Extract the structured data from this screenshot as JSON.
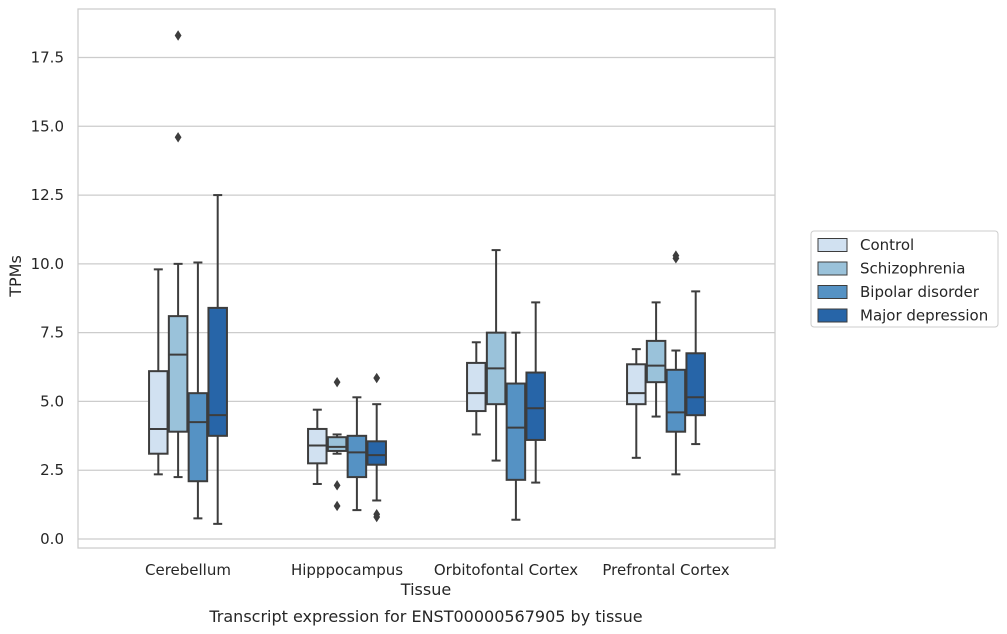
{
  "caption": "Transcript expression for ENST00000567905 by tissue",
  "chart_data": {
    "type": "box",
    "xlabel": "Tissue",
    "ylabel": "TPMs",
    "ylim": [
      -0.3,
      19.2
    ],
    "yticks": [
      "0.0",
      "2.5",
      "5.0",
      "7.5",
      "10.0",
      "12.5",
      "15.0",
      "17.5"
    ],
    "ytick_values": [
      0,
      2.5,
      5,
      7.5,
      10,
      12.5,
      15,
      17.5
    ],
    "grid": "horizontal",
    "legend_position": "right",
    "categories": [
      "Cerebellum",
      "Hipppocampus",
      "Orbitofontal Cortex",
      "Prefrontal Cortex"
    ],
    "series": [
      {
        "name": "Control",
        "color": "#d1e1f1",
        "boxes": [
          {
            "whislo": 2.35,
            "q1": 3.1,
            "med": 4.0,
            "q3": 6.1,
            "whishi": 9.8,
            "fliers": []
          },
          {
            "whislo": 2.0,
            "q1": 2.75,
            "med": 3.4,
            "q3": 4.0,
            "whishi": 4.7,
            "fliers": []
          },
          {
            "whislo": 3.8,
            "q1": 4.65,
            "med": 5.3,
            "q3": 6.4,
            "whishi": 7.15,
            "fliers": []
          },
          {
            "whislo": 2.95,
            "q1": 4.9,
            "med": 5.3,
            "q3": 6.35,
            "whishi": 6.9,
            "fliers": []
          }
        ]
      },
      {
        "name": "Schizophrenia",
        "color": "#9ac2da",
        "boxes": [
          {
            "whislo": 2.25,
            "q1": 3.9,
            "med": 6.7,
            "q3": 8.1,
            "whishi": 10.0,
            "fliers": [
              14.6,
              18.3
            ]
          },
          {
            "whislo": 3.1,
            "q1": 3.2,
            "med": 3.35,
            "q3": 3.7,
            "whishi": 3.8,
            "fliers": [
              5.7,
              1.95,
              1.2
            ]
          },
          {
            "whislo": 2.85,
            "q1": 4.9,
            "med": 6.2,
            "q3": 7.5,
            "whishi": 10.5,
            "fliers": []
          },
          {
            "whislo": 4.45,
            "q1": 5.7,
            "med": 6.3,
            "q3": 7.2,
            "whishi": 8.6,
            "fliers": []
          }
        ]
      },
      {
        "name": "Bipolar disorder",
        "color": "#5592c4",
        "boxes": [
          {
            "whislo": 0.75,
            "q1": 2.1,
            "med": 4.25,
            "q3": 5.3,
            "whishi": 10.05,
            "fliers": []
          },
          {
            "whislo": 1.05,
            "q1": 2.25,
            "med": 3.15,
            "q3": 3.75,
            "whishi": 5.15,
            "fliers": []
          },
          {
            "whislo": 0.7,
            "q1": 2.15,
            "med": 4.05,
            "q3": 5.65,
            "whishi": 7.5,
            "fliers": []
          },
          {
            "whislo": 2.35,
            "q1": 3.9,
            "med": 4.6,
            "q3": 6.15,
            "whishi": 6.85,
            "fliers": [
              10.2,
              10.3
            ]
          }
        ]
      },
      {
        "name": "Major depression",
        "color": "#2765a8",
        "boxes": [
          {
            "whislo": 0.55,
            "q1": 3.75,
            "med": 4.5,
            "q3": 8.4,
            "whishi": 12.5,
            "fliers": []
          },
          {
            "whislo": 1.4,
            "q1": 2.7,
            "med": 3.05,
            "q3": 3.55,
            "whishi": 4.9,
            "fliers": [
              5.85,
              0.8,
              0.9
            ]
          },
          {
            "whislo": 2.05,
            "q1": 3.6,
            "med": 4.75,
            "q3": 6.05,
            "whishi": 8.6,
            "fliers": []
          },
          {
            "whislo": 3.45,
            "q1": 4.5,
            "med": 5.15,
            "q3": 6.75,
            "whishi": 9.0,
            "fliers": []
          }
        ]
      }
    ]
  }
}
